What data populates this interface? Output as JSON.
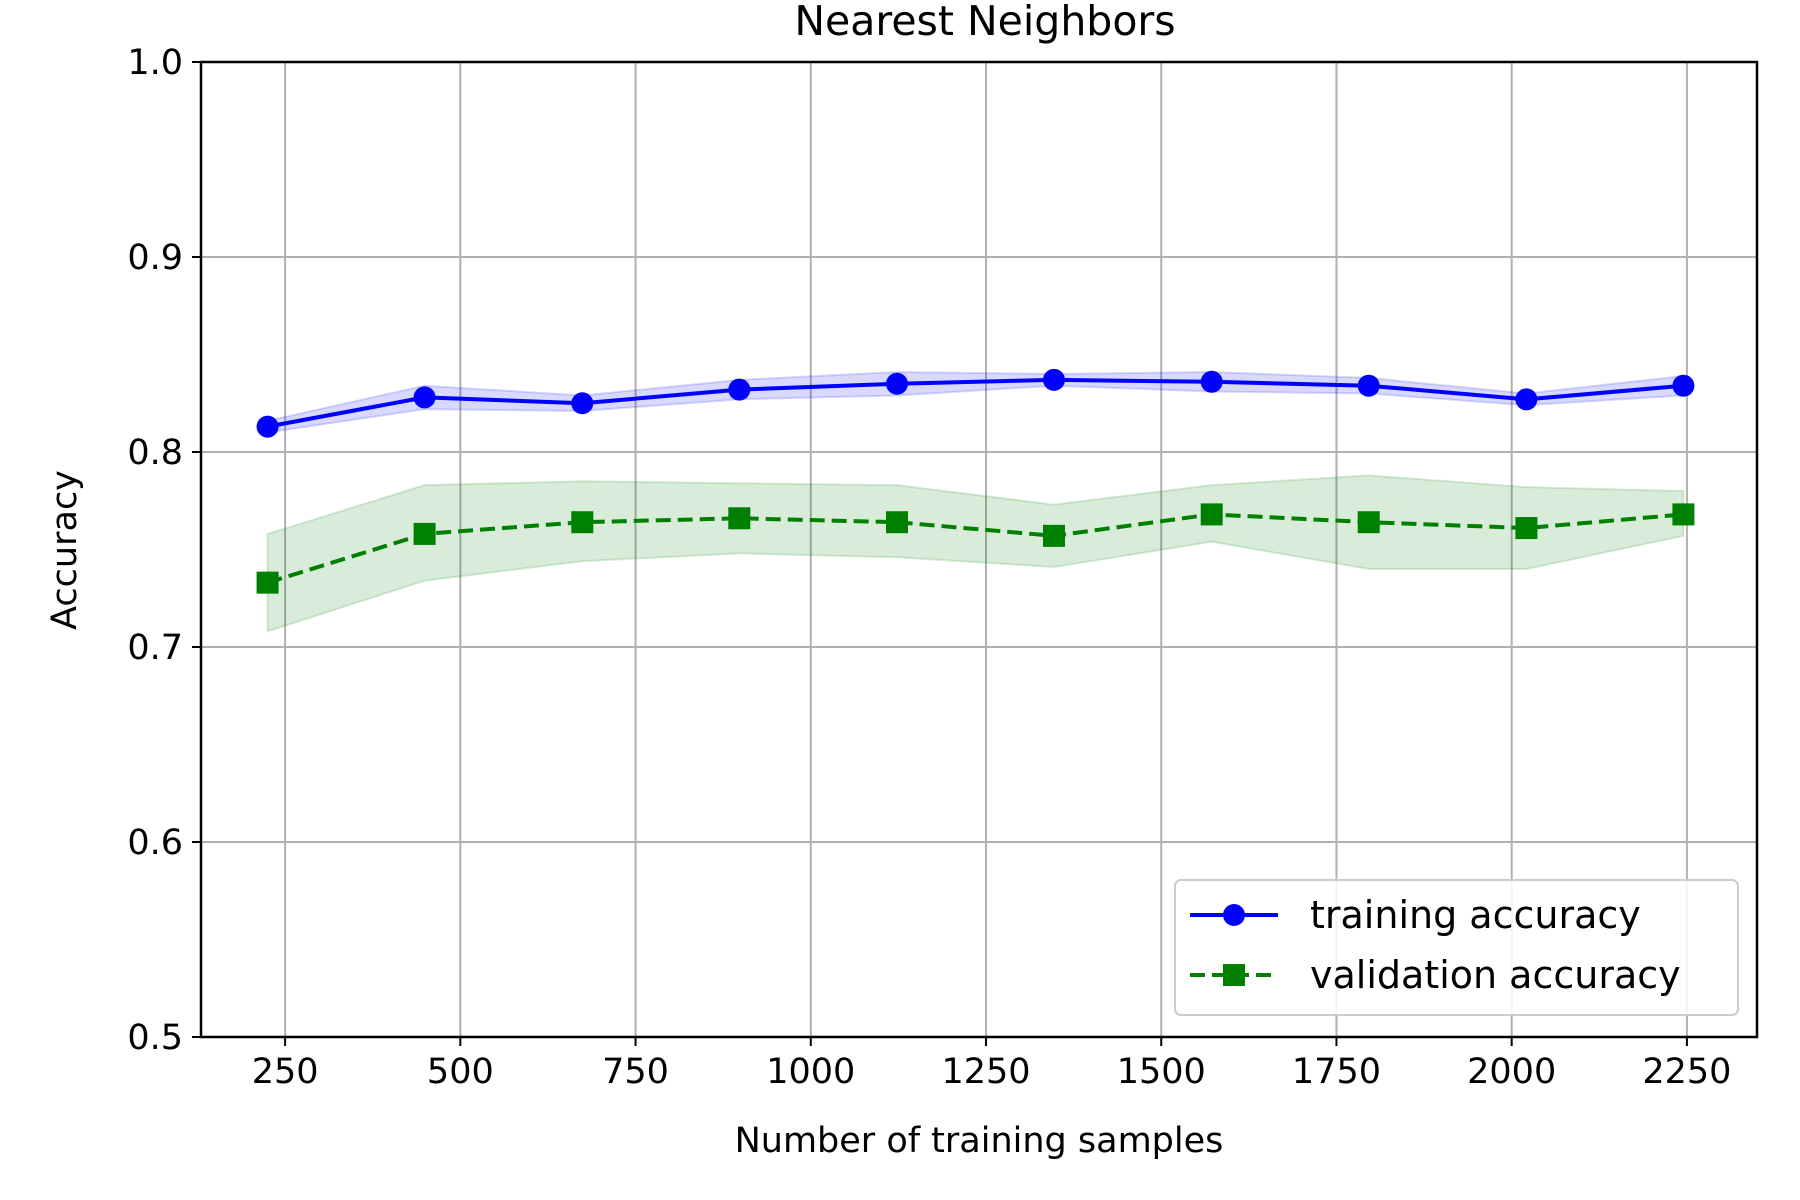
{
  "chart_data": {
    "type": "line",
    "title": "Nearest Neighbors",
    "xlabel": "Number of training samples",
    "ylabel": "Accuracy",
    "xlim": [
      130,
      2350
    ],
    "ylim": [
      0.5,
      1.0
    ],
    "x_ticks": [
      "250",
      "500",
      "750",
      "1000",
      "1250",
      "1500",
      "1750",
      "2000",
      "2250"
    ],
    "x_tick_values": [
      250,
      500,
      750,
      1000,
      1250,
      1500,
      1750,
      2000,
      2250
    ],
    "y_ticks": [
      "0.5",
      "0.6",
      "0.7",
      "0.8",
      "0.9",
      "1.0"
    ],
    "y_tick_values": [
      0.5,
      0.6,
      0.7,
      0.8,
      0.9,
      1.0
    ],
    "grid": true,
    "legend_position": "bottom-right",
    "x": [
      225,
      449,
      674,
      898,
      1123,
      1347,
      1572,
      1796,
      2021,
      2245
    ],
    "series": [
      {
        "name": "training accuracy",
        "color": "#0000ff",
        "line_style": "solid",
        "marker": "circle",
        "values": [
          0.813,
          0.828,
          0.825,
          0.832,
          0.835,
          0.837,
          0.836,
          0.834,
          0.827,
          0.834
        ],
        "band_lower": [
          0.81,
          0.822,
          0.821,
          0.827,
          0.829,
          0.834,
          0.831,
          0.83,
          0.824,
          0.829
        ],
        "band_upper": [
          0.816,
          0.834,
          0.829,
          0.837,
          0.841,
          0.84,
          0.841,
          0.838,
          0.83,
          0.839
        ],
        "band_color": "#0000ff"
      },
      {
        "name": "validation accuracy",
        "color": "#008000",
        "line_style": "dashed",
        "marker": "square",
        "values": [
          0.733,
          0.758,
          0.764,
          0.766,
          0.764,
          0.757,
          0.768,
          0.764,
          0.761,
          0.768
        ],
        "band_lower": [
          0.708,
          0.734,
          0.744,
          0.748,
          0.746,
          0.741,
          0.754,
          0.74,
          0.74,
          0.757
        ],
        "band_upper": [
          0.758,
          0.783,
          0.785,
          0.784,
          0.783,
          0.773,
          0.783,
          0.788,
          0.782,
          0.78
        ],
        "band_color": "#008000"
      }
    ]
  }
}
